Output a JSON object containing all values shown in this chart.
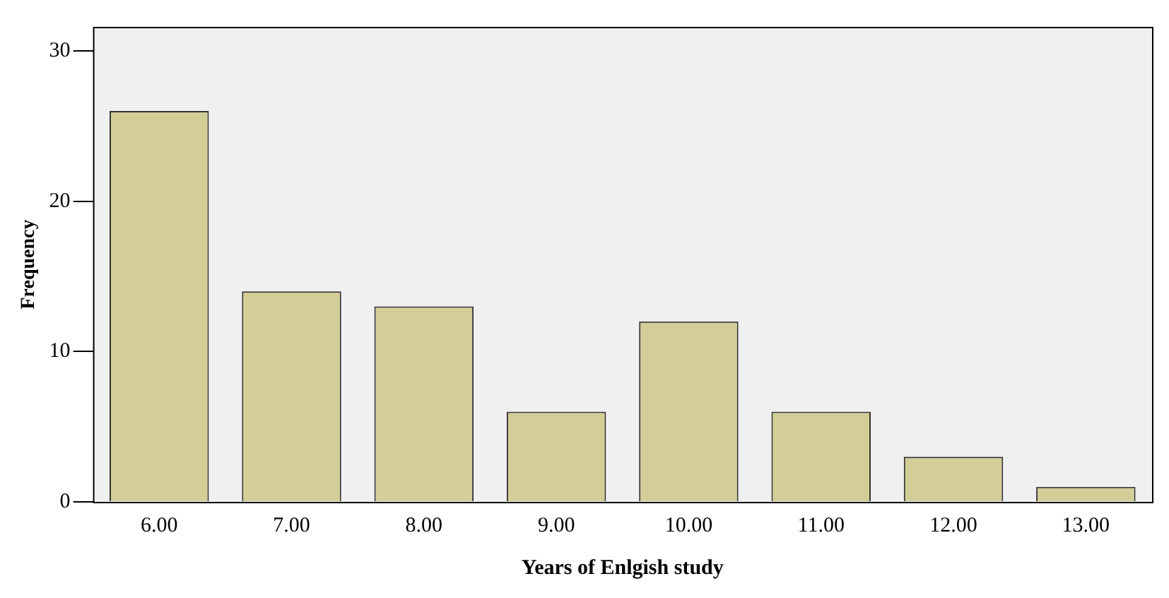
{
  "chart_data": {
    "type": "bar",
    "xlabel": "Years of Enlgish study",
    "ylabel": "Frequency",
    "categories": [
      "6.00",
      "7.00",
      "8.00",
      "9.00",
      "10.00",
      "11.00",
      "12.00",
      "13.00"
    ],
    "values": [
      26,
      14,
      13,
      6,
      12,
      6,
      3,
      1
    ],
    "color": "#d3ce97",
    "ylim": [
      0,
      31.6
    ],
    "yticks": [
      0,
      10,
      20,
      30
    ],
    "grid": false,
    "legend": false
  }
}
